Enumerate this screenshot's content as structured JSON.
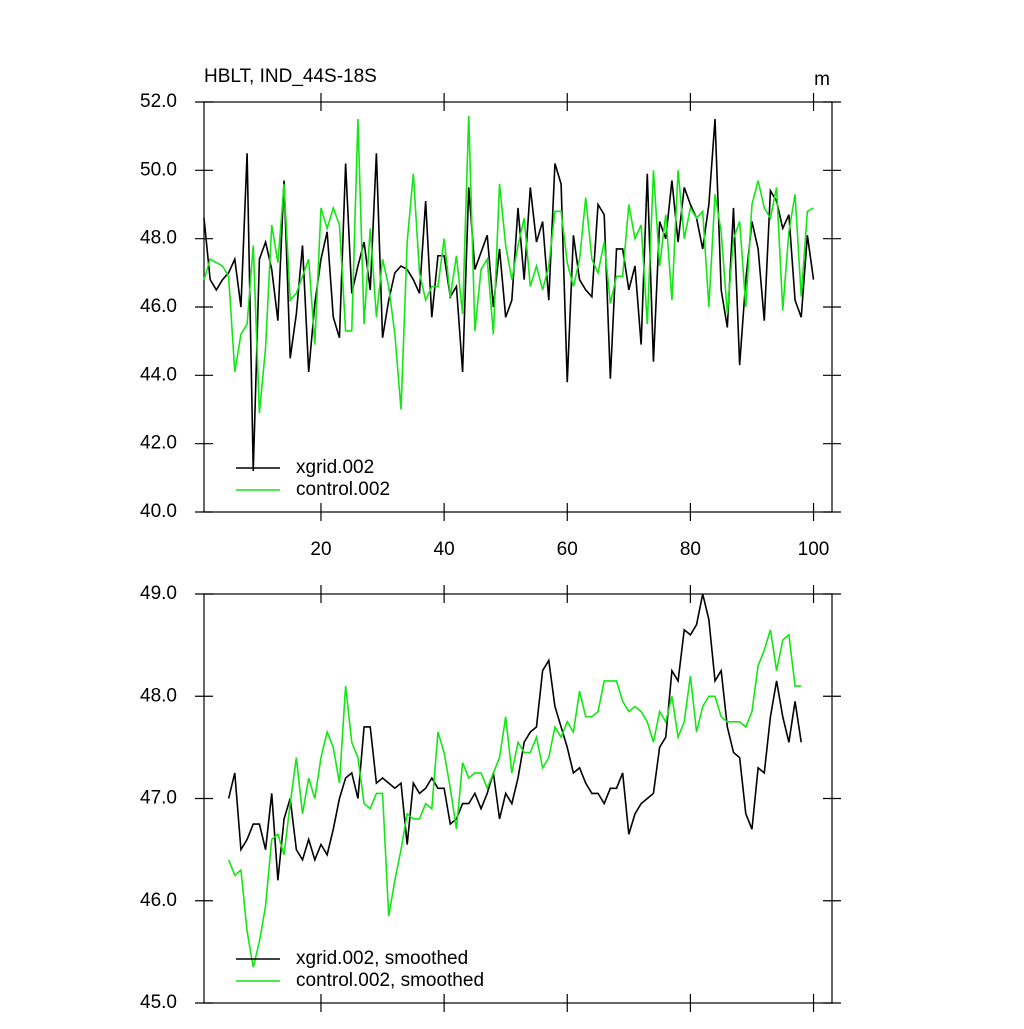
{
  "chart_data": [
    {
      "type": "line",
      "title": "HBLT, IND_44S-18S",
      "units": "m",
      "x": [
        1,
        2,
        3,
        4,
        5,
        6,
        7,
        8,
        9,
        10,
        11,
        12,
        13,
        14,
        15,
        16,
        17,
        18,
        19,
        20,
        21,
        22,
        23,
        24,
        25,
        26,
        27,
        28,
        29,
        30,
        31,
        32,
        33,
        34,
        35,
        36,
        37,
        38,
        39,
        40,
        41,
        42,
        43,
        44,
        45,
        46,
        47,
        48,
        49,
        50,
        51,
        52,
        53,
        54,
        55,
        56,
        57,
        58,
        59,
        60,
        61,
        62,
        63,
        64,
        65,
        66,
        67,
        68,
        69,
        70,
        71,
        72,
        73,
        74,
        75,
        76,
        77,
        78,
        79,
        80,
        81,
        82,
        83,
        84,
        85,
        86,
        87,
        88,
        89,
        90,
        91,
        92,
        93,
        94,
        95,
        96,
        97,
        98,
        99,
        100
      ],
      "series": [
        {
          "name": "xgrid.002",
          "color": "#000000",
          "values": [
            48.6,
            46.8,
            46.5,
            46.8,
            47.0,
            47.4,
            46.0,
            50.5,
            41.2,
            47.4,
            47.9,
            47.1,
            45.6,
            49.7,
            44.5,
            45.8,
            47.8,
            44.1,
            46.1,
            47.4,
            48.2,
            45.7,
            45.1,
            50.2,
            46.4,
            47.2,
            47.9,
            46.5,
            50.5,
            45.1,
            46.2,
            47.0,
            47.2,
            47.1,
            46.8,
            46.4,
            49.1,
            45.7,
            47.5,
            47.5,
            46.3,
            46.6,
            44.1,
            49.5,
            47.1,
            47.6,
            48.1,
            46.0,
            47.7,
            45.7,
            46.2,
            48.9,
            46.8,
            49.5,
            47.9,
            48.5,
            46.2,
            50.2,
            49.6,
            43.8,
            48.1,
            46.8,
            46.5,
            46.3,
            49.0,
            48.7,
            43.9,
            47.7,
            47.7,
            46.5,
            47.2,
            44.9,
            49.9,
            44.4,
            48.5,
            48.0,
            49.7,
            47.9,
            49.5,
            49.0,
            48.6,
            47.7,
            49.0,
            51.5,
            46.5,
            45.4,
            48.9,
            44.3,
            46.8,
            48.5,
            47.7,
            45.6,
            49.4,
            49.1,
            48.3,
            48.7,
            46.2,
            45.7,
            48.1,
            46.8
          ]
        },
        {
          "name": "control.002",
          "color": "#14e614",
          "values": [
            46.8,
            47.4,
            47.3,
            47.2,
            46.9,
            44.1,
            45.2,
            45.5,
            47.8,
            42.9,
            44.8,
            48.4,
            47.3,
            49.6,
            46.2,
            46.4,
            46.9,
            47.4,
            44.9,
            48.9,
            48.3,
            48.9,
            48.4,
            45.3,
            45.3,
            51.5,
            45.5,
            48.3,
            45.7,
            47.4,
            46.6,
            45.2,
            43.0,
            47.9,
            49.9,
            47.0,
            46.2,
            46.6,
            46.6,
            48.0,
            46.3,
            47.5,
            45.8,
            51.6,
            45.3,
            47.1,
            47.4,
            45.2,
            49.6,
            47.8,
            46.8,
            47.8,
            48.6,
            46.6,
            47.2,
            46.5,
            47.2,
            48.8,
            48.8,
            47.3,
            46.6,
            47.4,
            49.2,
            47.4,
            47.0,
            47.9,
            46.1,
            46.9,
            46.9,
            49.0,
            48.0,
            48.4,
            45.5,
            50.0,
            47.2,
            48.7,
            46.2,
            50.0,
            48.0,
            48.9,
            48.6,
            48.8,
            46.0,
            49.3,
            48.2,
            45.8,
            48.0,
            48.5,
            46.0,
            49.0,
            49.7,
            48.9,
            48.6,
            49.5,
            45.9,
            48.2,
            49.3,
            46.3,
            48.8,
            48.9
          ]
        }
      ],
      "xlim": [
        1,
        103
      ],
      "xticks": [
        20,
        40,
        60,
        80,
        100
      ],
      "ylim": [
        40,
        52
      ],
      "yticks": [
        {
          "value": 40,
          "label": "40.0"
        },
        {
          "value": 42,
          "label": "42.0"
        },
        {
          "value": 44,
          "label": "44.0"
        },
        {
          "value": 46,
          "label": "46.0"
        },
        {
          "value": 48,
          "label": "48.0"
        },
        {
          "value": 50,
          "label": "50.0"
        },
        {
          "value": 52,
          "label": "52.0"
        }
      ],
      "legend": "lower-left"
    },
    {
      "type": "line",
      "x": [
        5,
        6,
        7,
        8,
        9,
        10,
        11,
        12,
        13,
        14,
        15,
        16,
        17,
        18,
        19,
        20,
        21,
        22,
        23,
        24,
        25,
        26,
        27,
        28,
        29,
        30,
        31,
        32,
        33,
        34,
        35,
        36,
        37,
        38,
        39,
        40,
        41,
        42,
        43,
        44,
        45,
        46,
        47,
        48,
        49,
        50,
        51,
        52,
        53,
        54,
        55,
        56,
        57,
        58,
        59,
        60,
        61,
        62,
        63,
        64,
        65,
        66,
        67,
        68,
        69,
        70,
        71,
        72,
        73,
        74,
        75,
        76,
        77,
        78,
        79,
        80,
        81,
        82,
        83,
        84,
        85,
        86,
        87,
        88,
        89,
        90,
        91,
        92,
        93,
        94,
        95,
        96,
        97,
        98
      ],
      "series": [
        {
          "name": "xgrid.002, smoothed",
          "color": "#000000",
          "values": [
            47.0,
            47.25,
            46.5,
            46.6,
            46.75,
            46.75,
            46.5,
            47.05,
            46.2,
            46.8,
            47.0,
            46.5,
            46.4,
            46.6,
            46.4,
            46.55,
            46.45,
            46.7,
            47.0,
            47.2,
            47.25,
            47.0,
            47.7,
            47.7,
            47.15,
            47.2,
            47.15,
            47.1,
            47.15,
            46.55,
            47.15,
            47.05,
            47.1,
            47.2,
            47.1,
            47.1,
            46.75,
            46.8,
            46.95,
            46.95,
            47.05,
            46.9,
            47.05,
            47.25,
            46.8,
            47.05,
            46.95,
            47.2,
            47.55,
            47.65,
            47.7,
            48.25,
            48.35,
            47.9,
            47.7,
            47.5,
            47.25,
            47.3,
            47.15,
            47.05,
            47.05,
            46.95,
            47.1,
            47.1,
            47.25,
            46.65,
            46.85,
            46.95,
            47.0,
            47.05,
            47.5,
            47.6,
            48.25,
            48.15,
            48.65,
            48.6,
            48.7,
            49.0,
            48.75,
            48.15,
            48.25,
            47.7,
            47.45,
            47.4,
            46.85,
            46.7,
            47.3,
            47.25,
            47.8,
            48.15,
            47.8,
            47.55,
            47.95,
            47.55
          ]
        },
        {
          "name": "control.002, smoothed",
          "color": "#14e614",
          "values": [
            46.4,
            46.25,
            46.3,
            45.7,
            45.35,
            45.6,
            45.95,
            46.6,
            46.65,
            46.45,
            46.95,
            47.4,
            46.85,
            47.2,
            47.0,
            47.4,
            47.65,
            47.5,
            47.15,
            48.1,
            47.55,
            47.4,
            46.95,
            46.9,
            47.05,
            47.05,
            45.85,
            46.2,
            46.5,
            46.85,
            46.8,
            46.8,
            46.95,
            46.9,
            47.65,
            47.45,
            47.1,
            46.7,
            47.35,
            47.2,
            47.25,
            47.25,
            47.1,
            47.25,
            47.4,
            47.8,
            47.25,
            47.55,
            47.45,
            47.45,
            47.6,
            47.3,
            47.4,
            47.7,
            47.6,
            47.75,
            47.65,
            48.05,
            47.8,
            47.8,
            47.85,
            48.15,
            48.15,
            48.15,
            47.95,
            47.85,
            47.9,
            47.85,
            47.75,
            47.55,
            47.85,
            47.75,
            48.0,
            47.6,
            47.75,
            48.2,
            47.65,
            47.9,
            48.0,
            48.0,
            47.8,
            47.75,
            47.75,
            47.75,
            47.7,
            47.85,
            48.3,
            48.45,
            48.65,
            48.25,
            48.55,
            48.6,
            48.1,
            48.1
          ]
        }
      ],
      "xlim": [
        1,
        103
      ],
      "xticks": [
        {
          "value": 20,
          "label": null
        },
        {
          "value": 40,
          "label": null
        },
        {
          "value": 60,
          "label": null
        },
        {
          "value": 80,
          "label": null
        },
        {
          "value": 100,
          "label": null
        }
      ],
      "ylim": [
        45,
        49
      ],
      "yticks": [
        {
          "value": 45,
          "label": "45.0"
        },
        {
          "value": 46,
          "label": "46.0"
        },
        {
          "value": 47,
          "label": "47.0"
        },
        {
          "value": 48,
          "label": "48.0"
        },
        {
          "value": 49,
          "label": "49.0"
        }
      ],
      "legend": "lower-left"
    }
  ]
}
